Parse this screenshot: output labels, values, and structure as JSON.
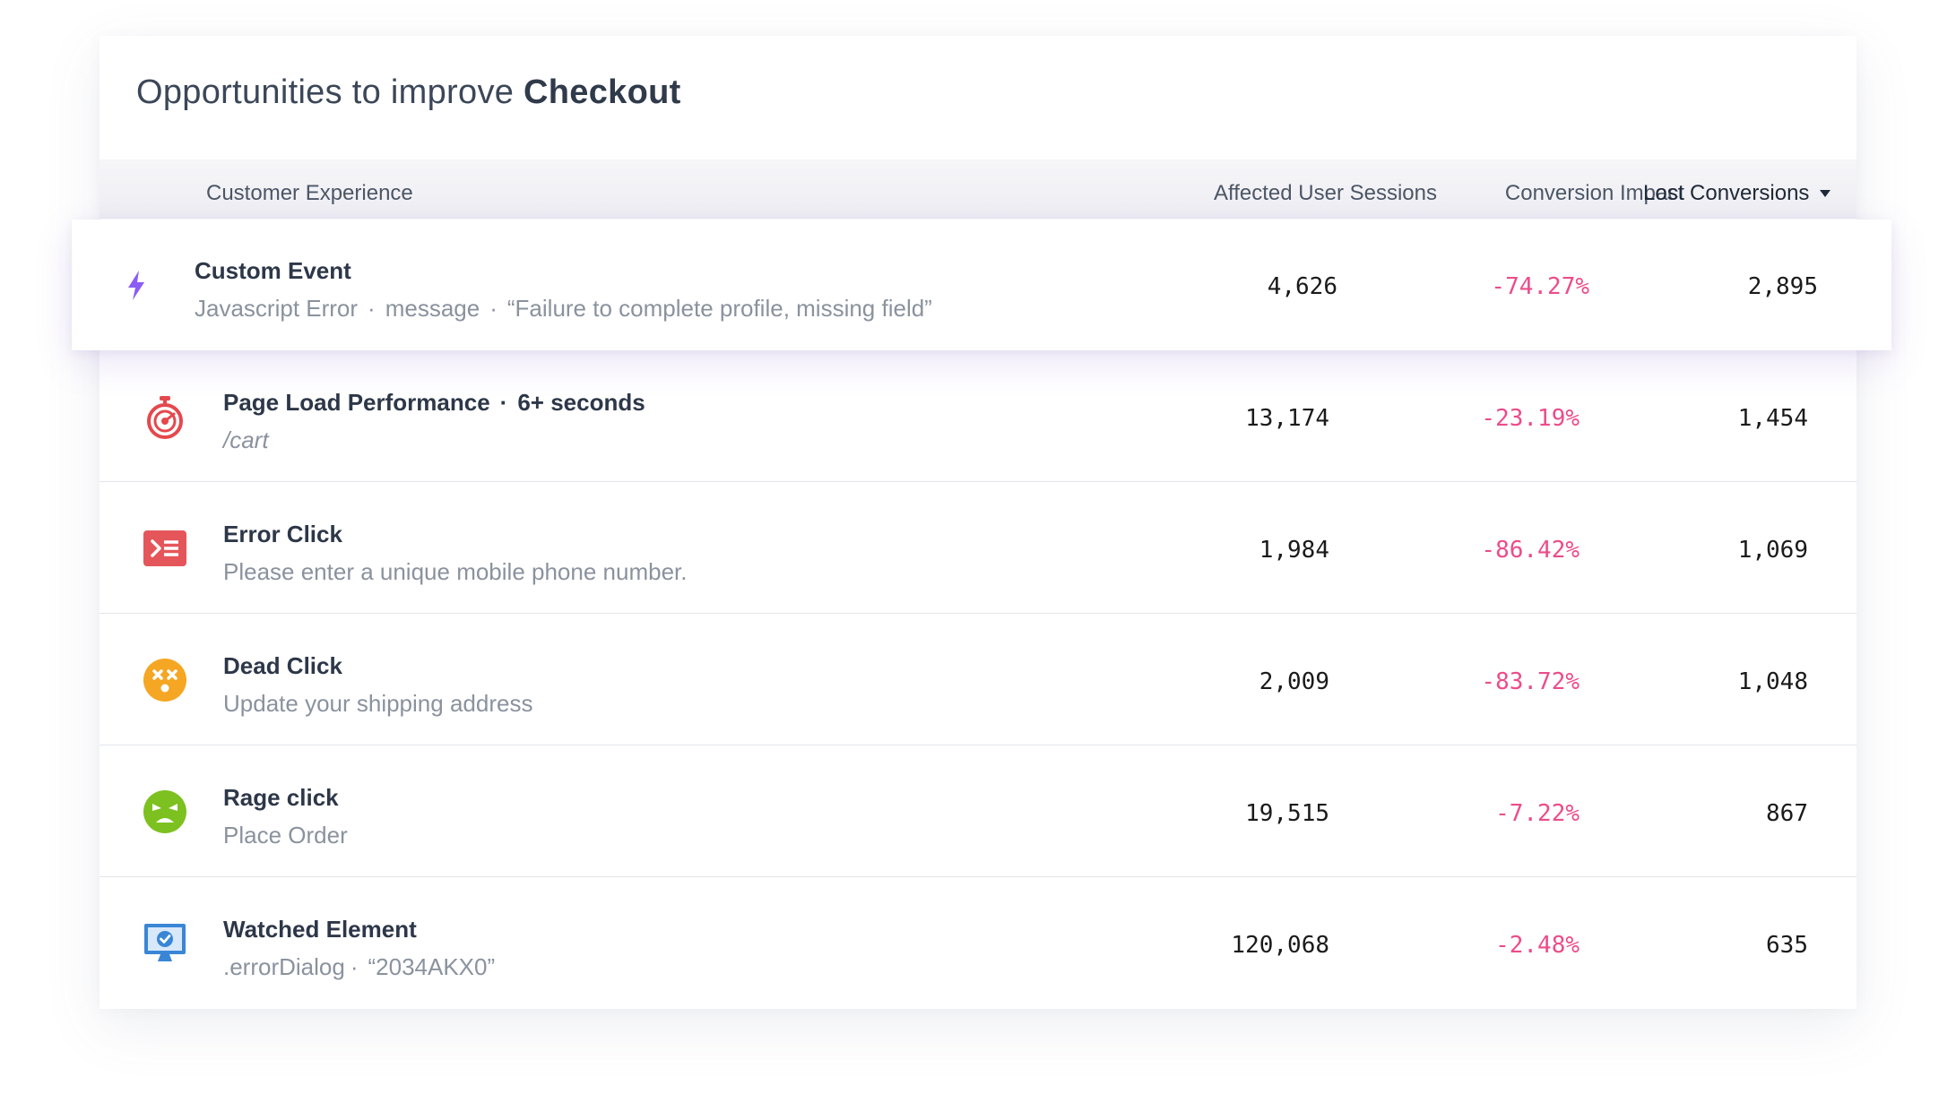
{
  "header": {
    "title_prefix": "Opportunities to improve",
    "title_bold": "Checkout"
  },
  "columns": {
    "experience": "Customer Experience",
    "sessions": "Affected User Sessions",
    "impact": "Conversion Impact",
    "lost": "Lost Conversions",
    "sorted_column": "lost",
    "sort_direction": "descending"
  },
  "colors": {
    "impact_negative": "#ec4c8a",
    "custom_event": "#8b5cf6",
    "page_load": "#e5484d",
    "error_click": "#e5565a",
    "dead_click": "#f5a623",
    "rage_click": "#7cc11f",
    "watched_element": "#3a86d6"
  },
  "rows": [
    {
      "icon": "lightning-icon",
      "name": "Custom Event",
      "extra": "",
      "sub_parts": [
        "Javascript Error",
        "message",
        "“Failure to complete profile, missing field”"
      ],
      "sessions": "4,626",
      "impact": "-74.27%",
      "lost": "2,895",
      "highlighted": true
    },
    {
      "icon": "stopwatch-icon",
      "name": "Page Load Performance",
      "extra": "6+ seconds",
      "sub_parts": [
        "/cart"
      ],
      "sessions": "13,174",
      "impact": "-23.19%",
      "lost": "1,454"
    },
    {
      "icon": "terminal-error-icon",
      "name": "Error Click",
      "extra": "",
      "sub_parts": [
        "Please enter a unique mobile phone number."
      ],
      "sessions": "1,984",
      "impact": "-86.42%",
      "lost": "1,069"
    },
    {
      "icon": "dead-face-icon",
      "name": "Dead Click",
      "extra": "",
      "sub_parts": [
        "Update your shipping address"
      ],
      "sessions": "2,009",
      "impact": "-83.72%",
      "lost": "1,048"
    },
    {
      "icon": "angry-face-icon",
      "name": "Rage click",
      "extra": "",
      "sub_parts": [
        "Place Order"
      ],
      "sessions": "19,515",
      "impact": "-7.22%",
      "lost": "867"
    },
    {
      "icon": "monitor-check-icon",
      "name": "Watched Element",
      "extra": "",
      "sub_parts": [
        ".errorDialog",
        "“2034AKX0”"
      ],
      "sessions": "120,068",
      "impact": "-2.48%",
      "lost": "635"
    }
  ]
}
